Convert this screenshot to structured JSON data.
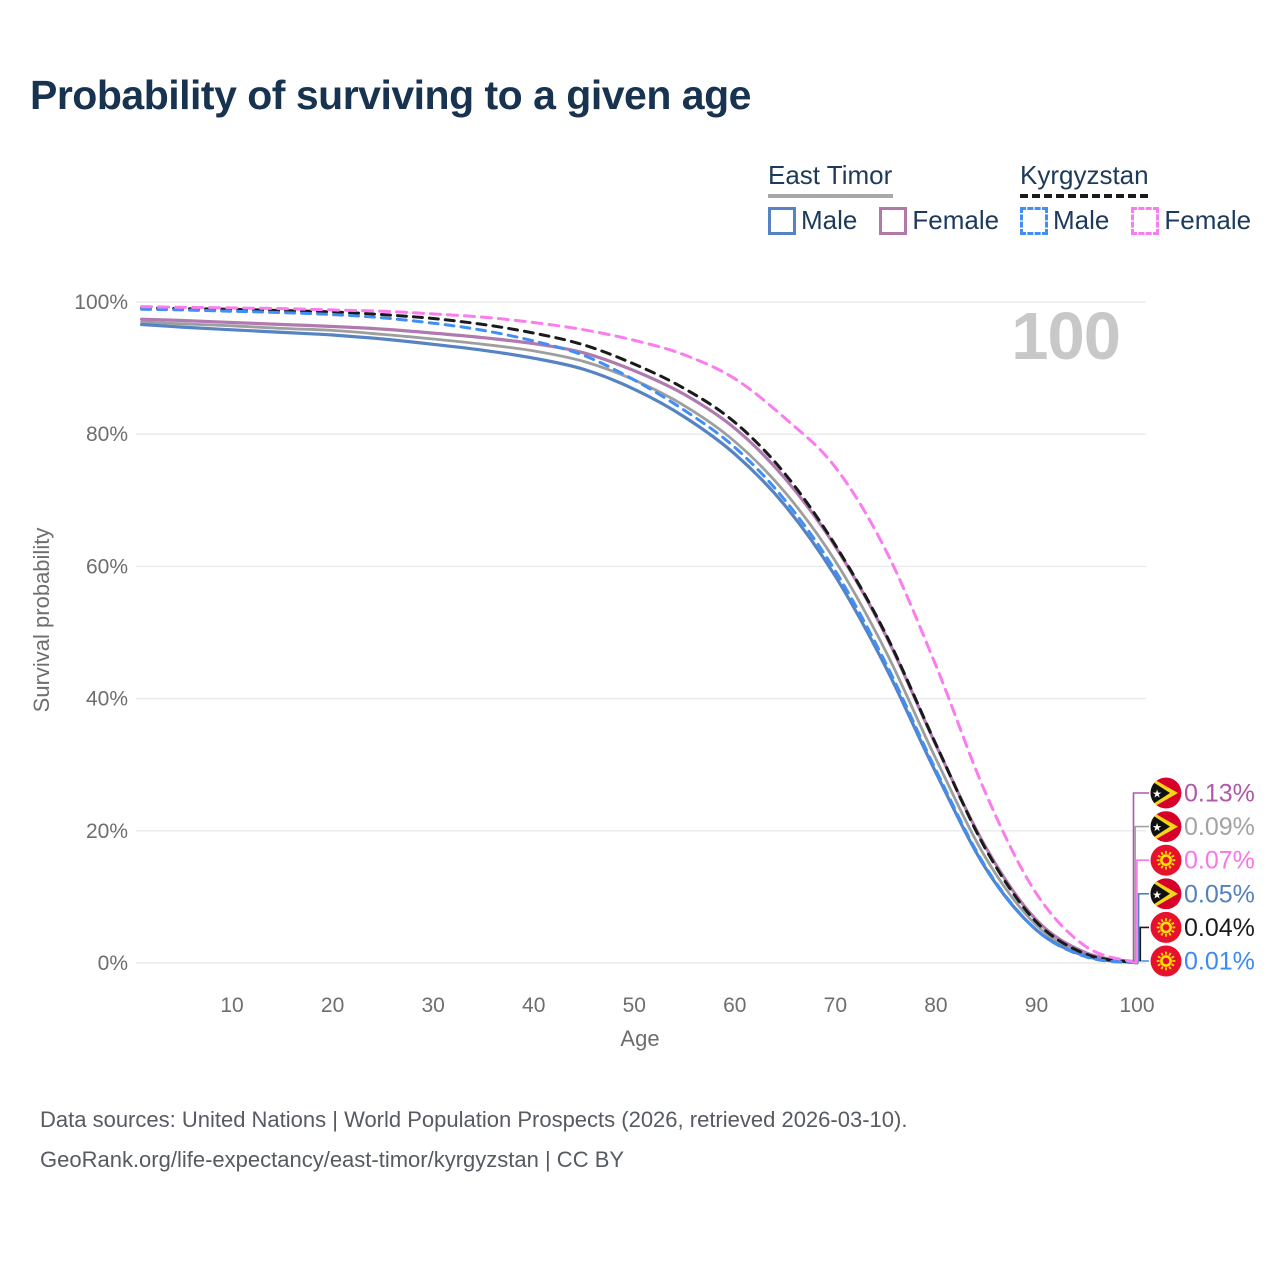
{
  "title": "Probability of surviving to a given age",
  "watermark_hover_value": "100",
  "legend": {
    "groups": [
      {
        "label": "East Timor",
        "style": "solid",
        "underline_color": "#a8a8a8",
        "items": [
          {
            "label": "Male",
            "color": "#5583c4"
          },
          {
            "label": "Female",
            "color": "#b279a7"
          }
        ]
      },
      {
        "label": "Kyrgyzstan",
        "style": "dashed",
        "underline_color": "#1a1a1a",
        "items": [
          {
            "label": "Male",
            "color": "#418ef5"
          },
          {
            "label": "Female",
            "color": "#fb7cee"
          }
        ]
      }
    ]
  },
  "chart_data": {
    "type": "line",
    "title": "Probability of surviving to a given age",
    "xlabel": "Age",
    "ylabel": "Survival probability",
    "xlim": [
      0,
      101
    ],
    "ylim": [
      0,
      100
    ],
    "grid": "horizontal",
    "x_ticks": [
      10,
      20,
      30,
      40,
      50,
      60,
      70,
      80,
      90,
      100
    ],
    "y_ticks": [
      {
        "label": "100%",
        "value": 100
      },
      {
        "label": "80%",
        "value": 80
      },
      {
        "label": "60%",
        "value": 60
      },
      {
        "label": "40%",
        "value": 40
      },
      {
        "label": "20%",
        "value": 20
      },
      {
        "label": "0%",
        "value": 0
      }
    ],
    "x": [
      1,
      5,
      10,
      15,
      20,
      25,
      30,
      35,
      40,
      45,
      50,
      55,
      60,
      65,
      70,
      75,
      80,
      85,
      90,
      95,
      100
    ],
    "series": [
      {
        "key": "east_timor_total",
        "name": "East Timor — Both sexes",
        "color": "#9e9e9e",
        "dash": "",
        "width": 2.8,
        "values": [
          97.0,
          96.7,
          96.4,
          96.0,
          95.7,
          95.1,
          94.4,
          93.6,
          92.6,
          91.0,
          88.2,
          84.3,
          78.9,
          71.2,
          60.8,
          47.2,
          30.9,
          15.8,
          5.7,
          1.2,
          0.09
        ]
      },
      {
        "key": "east_timor_male",
        "name": "East Timor — Male",
        "color": "#5583c4",
        "dash": "",
        "width": 3.2,
        "values": [
          96.6,
          96.2,
          95.8,
          95.4,
          95.0,
          94.4,
          93.6,
          92.7,
          91.5,
          89.8,
          86.8,
          82.6,
          77.0,
          69.2,
          58.5,
          44.8,
          28.8,
          14.2,
          5.0,
          1.0,
          0.05
        ]
      },
      {
        "key": "east_timor_female",
        "name": "East Timor — Female",
        "color": "#b07ab0",
        "dash": "",
        "width": 3.2,
        "values": [
          97.4,
          97.2,
          96.9,
          96.6,
          96.3,
          95.9,
          95.3,
          94.6,
          93.7,
          92.3,
          89.6,
          86.0,
          80.9,
          73.3,
          63.0,
          49.6,
          33.0,
          17.4,
          6.5,
          1.5,
          0.13
        ]
      },
      {
        "key": "kyrgyzstan_total",
        "name": "Kyrgyzstan — Both sexes",
        "color": "#1a1a1a",
        "dash": "9 7",
        "width": 3,
        "values": [
          99.1,
          99.0,
          98.9,
          98.7,
          98.5,
          98.1,
          97.5,
          96.6,
          95.3,
          93.5,
          90.6,
          86.9,
          81.8,
          74.0,
          63.2,
          49.8,
          33.1,
          17.1,
          6.2,
          1.3,
          0.04
        ]
      },
      {
        "key": "kyrgyzstan_male",
        "name": "Kyrgyzstan — Male",
        "color": "#418ef5",
        "dash": "9 7",
        "width": 3,
        "values": [
          98.9,
          98.8,
          98.6,
          98.4,
          98.1,
          97.6,
          96.8,
          95.7,
          94.1,
          91.9,
          88.2,
          83.6,
          78.0,
          70.0,
          59.3,
          45.4,
          29.2,
          14.4,
          5.0,
          0.9,
          0.01
        ]
      },
      {
        "key": "kyrgyzstan_female",
        "name": "Kyrgyzstan — Female",
        "color": "#fb7cee",
        "dash": "10 7",
        "width": 3,
        "values": [
          99.3,
          99.2,
          99.1,
          99.0,
          98.8,
          98.6,
          98.2,
          97.7,
          96.9,
          95.8,
          94.2,
          92.0,
          88.4,
          82.4,
          75.0,
          62.5,
          45.0,
          25.5,
          10.5,
          2.4,
          0.07
        ]
      }
    ],
    "end_labels": [
      {
        "value": "0.13%",
        "series": "east_timor_female",
        "flag": "east-timor",
        "color": "#ad58a8"
      },
      {
        "value": "0.09%",
        "series": "east_timor_total",
        "flag": "east-timor",
        "color": "#a3a3a3"
      },
      {
        "value": "0.07%",
        "series": "kyrgyzstan_female",
        "flag": "kyrgyzstan",
        "color": "#f875ea"
      },
      {
        "value": "0.05%",
        "series": "east_timor_male",
        "flag": "east-timor",
        "color": "#5580c0"
      },
      {
        "value": "0.04%",
        "series": "kyrgyzstan_total",
        "flag": "kyrgyzstan",
        "color": "#1a1a1a"
      },
      {
        "value": "0.01%",
        "series": "kyrgyzstan_male",
        "flag": "kyrgyzstan",
        "color": "#3c8af5"
      }
    ]
  },
  "footer": {
    "line1": "Data sources: United Nations | World Population Prospects (2026, retrieved 2026-03-10).",
    "line2": "GeoRank.org/life-expectancy/east-timor/kyrgyzstan | CC BY"
  }
}
